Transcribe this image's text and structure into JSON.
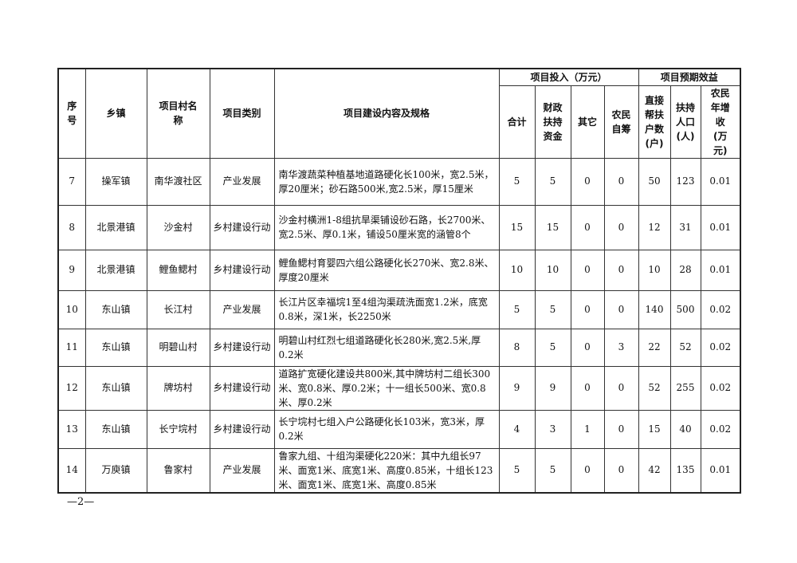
{
  "headers": {
    "seq": "序号",
    "town": "乡镇",
    "village": "项目村名称",
    "category": "项目类别",
    "content": "项目建设内容及规格",
    "investment_group": "项目投入（万元）",
    "benefit_group": "项目预期效益",
    "total": "合计",
    "fiscal": "财政扶持资金",
    "other": "其它",
    "farmer_self": "农民自筹",
    "households": "直接帮扶户数(户)",
    "people": "扶持人口(人)",
    "income": "农民年增收(万元)"
  },
  "rows": [
    {
      "seq": "7",
      "town": "操军镇",
      "village": "南华渡社区",
      "category": "产业发展",
      "content": "南华渡蔬菜种植基地道路硬化长100米，宽2.5米，厚20厘米；砂石路500米,宽2.5米，厚15厘米",
      "total": "5",
      "fiscal": "5",
      "other": "0",
      "farmer_self": "0",
      "households": "50",
      "people": "123",
      "income": "0.01"
    },
    {
      "seq": "8",
      "town": "北景港镇",
      "village": "沙金村",
      "category": "乡村建设行动",
      "content": "沙金村横洲1-8组抗旱渠铺设砂石路，长2700米、宽2.5米、厚0.1米，铺设50厘米宽的涵管8个",
      "total": "15",
      "fiscal": "15",
      "other": "0",
      "farmer_self": "0",
      "households": "12",
      "people": "31",
      "income": "0.01"
    },
    {
      "seq": "9",
      "town": "北景港镇",
      "village": "鲤鱼鳃村",
      "category": "乡村建设行动",
      "content": "鲤鱼鳃村育婴四六组公路硬化长270米、宽2.8米、厚度20厘米",
      "total": "10",
      "fiscal": "10",
      "other": "0",
      "farmer_self": "0",
      "households": "10",
      "people": "28",
      "income": "0.01"
    },
    {
      "seq": "10",
      "town": "东山镇",
      "village": "长江村",
      "category": "产业发展",
      "content": "长江片区幸福垸1至4组沟渠疏洗面宽1.2米，底宽0.8米，深1米，长2250米",
      "total": "5",
      "fiscal": "5",
      "other": "0",
      "farmer_self": "0",
      "households": "140",
      "people": "500",
      "income": "0.02"
    },
    {
      "seq": "11",
      "town": "东山镇",
      "village": "明碧山村",
      "category": "乡村建设行动",
      "content": "明碧山村红烈七组道路硬化长280米,宽2.5米,厚0.2米",
      "total": "8",
      "fiscal": "5",
      "other": "0",
      "farmer_self": "3",
      "households": "22",
      "people": "52",
      "income": "0.02"
    },
    {
      "seq": "12",
      "town": "东山镇",
      "village": "牌坊村",
      "category": "乡村建设行动",
      "content": "道路扩宽硬化建设共800米,其中牌坊村二组长300米、宽0.8米、厚0.2米；十一组长500米、宽0.8米、厚0.2米",
      "total": "9",
      "fiscal": "9",
      "other": "0",
      "farmer_self": "0",
      "households": "52",
      "people": "255",
      "income": "0.02"
    },
    {
      "seq": "13",
      "town": "东山镇",
      "village": "长宁垸村",
      "category": "乡村建设行动",
      "content": "长宁垸村七组入户公路硬化长103米，宽3米，厚0.2米",
      "total": "4",
      "fiscal": "3",
      "other": "1",
      "farmer_self": "0",
      "households": "15",
      "people": "40",
      "income": "0.02"
    },
    {
      "seq": "14",
      "town": "万庾镇",
      "village": "鲁家村",
      "category": "产业发展",
      "content": "鲁家九组、十组沟渠硬化220米：其中九组长97米、面宽1米、底宽1米、高度0.85米，十组长123米、面宽1米、底宽1米、高度0.85米",
      "total": "5",
      "fiscal": "5",
      "other": "0",
      "farmer_self": "0",
      "households": "42",
      "people": "135",
      "income": "0.01"
    }
  ],
  "footer": {
    "page": "—2—"
  }
}
